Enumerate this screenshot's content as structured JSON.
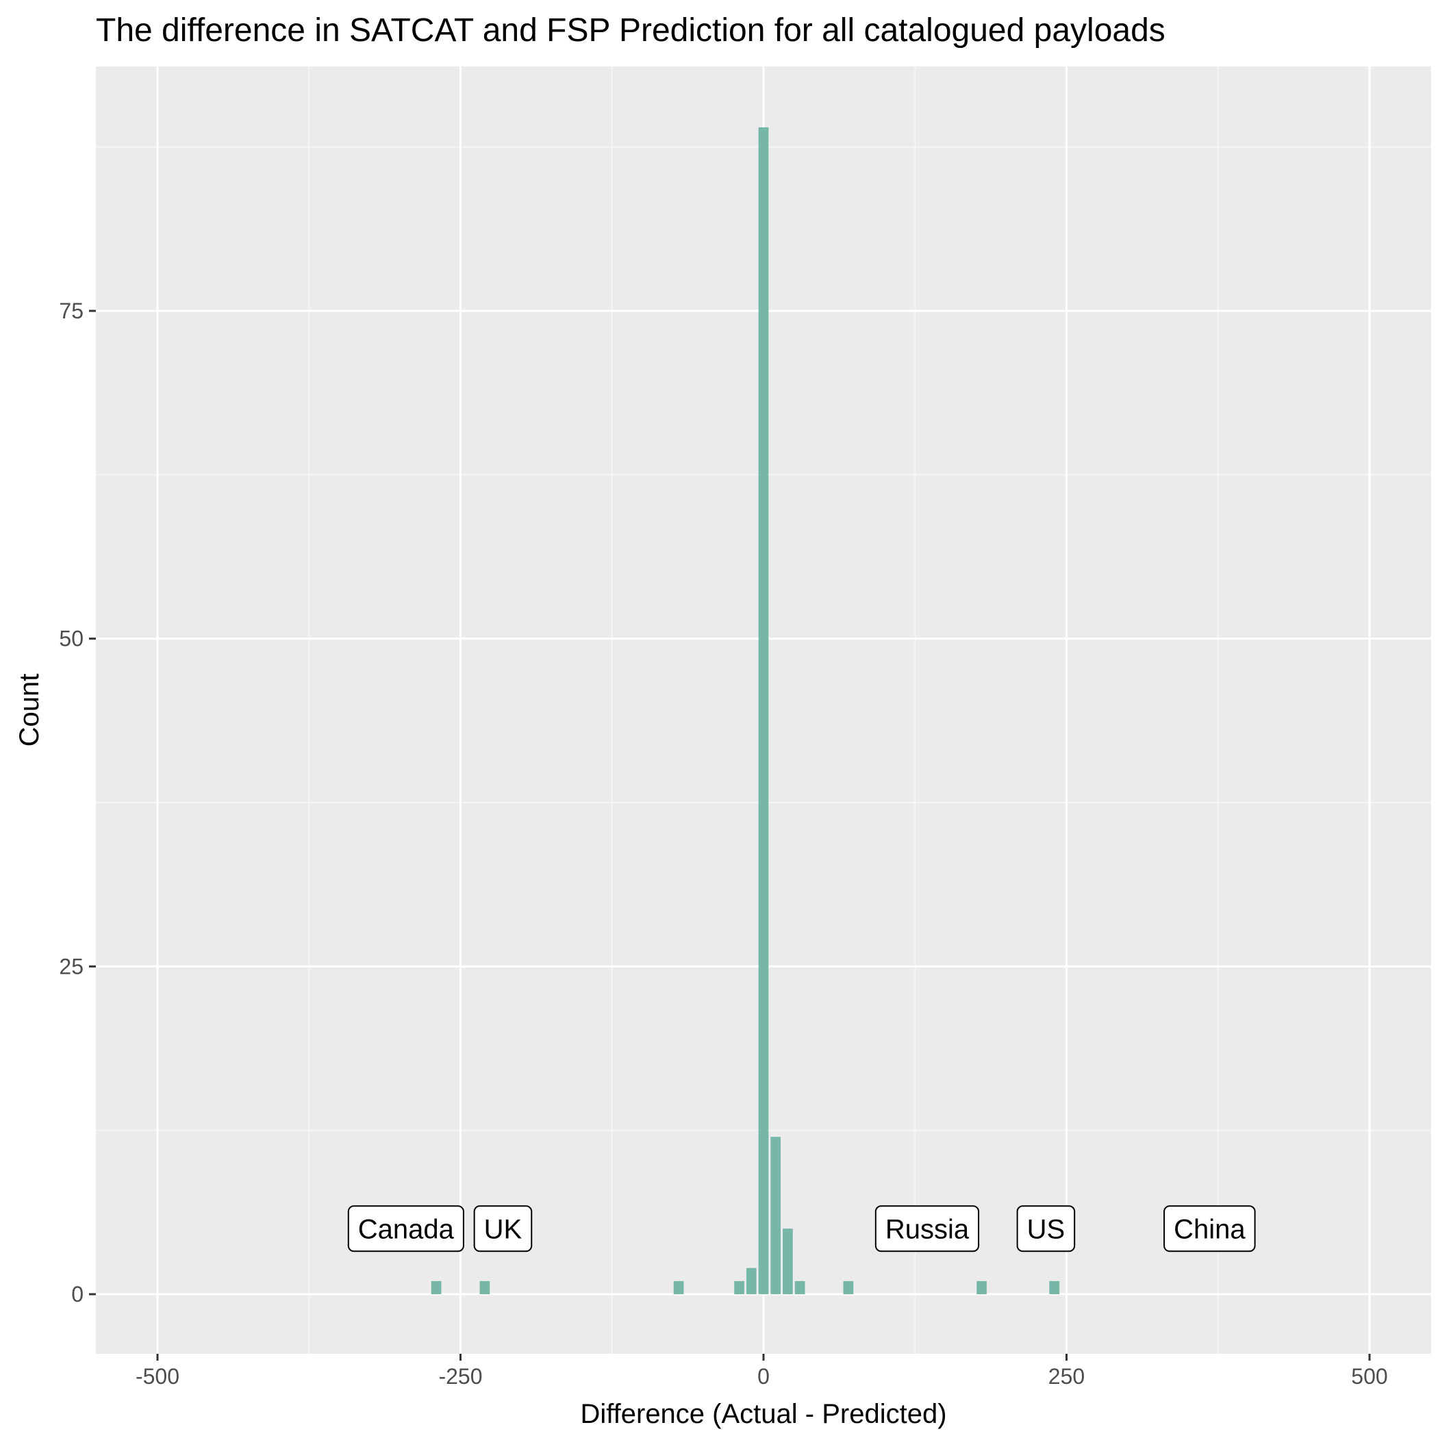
{
  "colors": {
    "panel_background": "#ebebeb",
    "grid_major": "#ffffff",
    "grid_minor": "#f5f5f5",
    "bar_fill": "#76b7a8",
    "tick_text": "#4d4d4d",
    "annotation_border": "#000000",
    "annotation_fill": "#ffffff"
  },
  "chart_data": {
    "type": "bar",
    "title": "The difference in SATCAT and FSP Prediction for all catalogued payloads",
    "xlabel": "Difference (Actual - Predicted)",
    "ylabel": "Count",
    "xlim": [
      -500,
      500
    ],
    "ylim": [
      0,
      92
    ],
    "bin_width": 10,
    "x_ticks": [
      -500,
      -250,
      0,
      250,
      500
    ],
    "x_tick_labels": [
      "-500",
      "-250",
      "0",
      "250",
      "500"
    ],
    "y_ticks": [
      0,
      25,
      50,
      75
    ],
    "y_tick_labels": [
      "0",
      "25",
      "50",
      "75"
    ],
    "grid": true,
    "bins": [
      {
        "x": -270,
        "count": 1
      },
      {
        "x": -230,
        "count": 1
      },
      {
        "x": -70,
        "count": 1
      },
      {
        "x": -20,
        "count": 1
      },
      {
        "x": -10,
        "count": 2
      },
      {
        "x": 0,
        "count": 89
      },
      {
        "x": 10,
        "count": 12
      },
      {
        "x": 20,
        "count": 5
      },
      {
        "x": 30,
        "count": 1
      },
      {
        "x": 70,
        "count": 1
      },
      {
        "x": 180,
        "count": 1
      },
      {
        "x": 240,
        "count": 1
      }
    ],
    "annotations": [
      {
        "label": "Canada",
        "x": -295,
        "y": 5
      },
      {
        "label": "UK",
        "x": -215,
        "y": 5
      },
      {
        "label": "Russia",
        "x": 135,
        "y": 5
      },
      {
        "label": "US",
        "x": 233,
        "y": 5
      },
      {
        "label": "China",
        "x": 368,
        "y": 5
      }
    ]
  }
}
